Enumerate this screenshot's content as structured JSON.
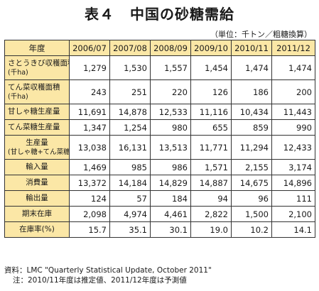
{
  "title": {
    "label": "表４",
    "text": "中国の砂糖需給"
  },
  "unit": "（単位：千トン／粗糖換算）",
  "table": {
    "corner": "年度",
    "columns": [
      "2006/07",
      "2007/08",
      "2008/09",
      "2009/10",
      "2010/11",
      "2011/12"
    ],
    "rows": [
      {
        "label": "さとうきび収穫面積",
        "sub": "(千ha)",
        "values": [
          "1,279",
          "1,530",
          "1,557",
          "1,454",
          "1,474",
          "1,474"
        ]
      },
      {
        "label": "てん菜収穫面積",
        "sub": "(千ha)",
        "values": [
          "243",
          "251",
          "220",
          "126",
          "186",
          "200"
        ]
      },
      {
        "label": "甘しゃ糖生産量",
        "sub": "",
        "values": [
          "11,691",
          "14,878",
          "12,533",
          "11,116",
          "10,434",
          "11,443"
        ]
      },
      {
        "label": "てん菜糖生産量",
        "sub": "",
        "values": [
          "1,347",
          "1,254",
          "980",
          "655",
          "859",
          "990"
        ]
      },
      {
        "label": "生産量",
        "sub": "(甘しゃ糖+てん菜糖)",
        "values": [
          "13,038",
          "16,131",
          "13,513",
          "11,771",
          "11,294",
          "12,433"
        ]
      },
      {
        "label": "輸入量",
        "sub": "",
        "values": [
          "1,469",
          "985",
          "986",
          "1,571",
          "2,155",
          "3,174"
        ]
      },
      {
        "label": "消費量",
        "sub": "",
        "values": [
          "13,372",
          "14,184",
          "14,829",
          "14,887",
          "14,675",
          "14,896"
        ]
      },
      {
        "label": "輸出量",
        "sub": "",
        "values": [
          "124",
          "57",
          "184",
          "94",
          "96",
          "111"
        ]
      },
      {
        "label": "期末在庫",
        "sub": "",
        "values": [
          "2,098",
          "4,974",
          "4,461",
          "2,822",
          "1,500",
          "2,100"
        ]
      },
      {
        "label": "在庫率(%)",
        "sub": "",
        "values": [
          "15.7",
          "35.1",
          "30.1",
          "19.0",
          "10.2",
          "14.1"
        ]
      }
    ]
  },
  "notes": {
    "source": "資料：LMC \"Quarterly Statistical Update, October 2011\"",
    "note": "注：2010/11年度は推定値、2011/12年度は予測値"
  },
  "colors": {
    "header_fill": "#fbe7a6",
    "border": "#333333"
  }
}
